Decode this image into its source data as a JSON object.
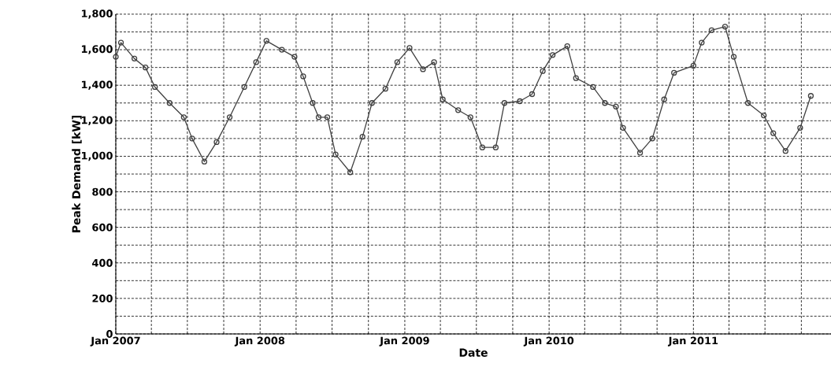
{
  "chart_data": {
    "type": "line",
    "xlabel": "Date",
    "ylabel": "Peak Demand [kW]",
    "x": [
      "2007-01-01",
      "2007-01-14",
      "2007-02-17",
      "2007-03-17",
      "2007-04-10",
      "2007-05-17",
      "2007-06-22",
      "2007-07-13",
      "2007-08-13",
      "2007-09-13",
      "2007-10-16",
      "2007-11-22",
      "2007-12-22",
      "2008-01-17",
      "2008-02-25",
      "2008-03-28",
      "2008-04-19",
      "2008-05-13",
      "2008-05-28",
      "2008-06-19",
      "2008-07-10",
      "2008-08-16",
      "2008-09-16",
      "2008-10-10",
      "2008-11-13",
      "2008-12-13",
      "2009-01-13",
      "2009-02-16",
      "2009-03-16",
      "2009-04-07",
      "2009-05-16",
      "2009-06-16",
      "2009-07-16",
      "2009-08-19",
      "2009-09-10",
      "2009-10-19",
      "2009-11-19",
      "2009-12-16",
      "2010-01-10",
      "2010-02-16",
      "2010-03-10",
      "2010-04-22",
      "2010-05-22",
      "2010-06-19",
      "2010-07-07",
      "2010-08-19",
      "2010-09-19",
      "2010-10-19",
      "2010-11-13",
      "2011-01-01",
      "2011-01-22",
      "2011-02-16",
      "2011-03-22",
      "2011-04-13",
      "2011-05-19",
      "2011-06-28",
      "2011-07-22",
      "2011-08-22",
      "2011-09-28",
      "2011-10-25"
    ],
    "series": [
      {
        "color": "#404040",
        "values": [
          1560,
          1640,
          1550,
          1500,
          1390,
          1300,
          1220,
          1100,
          970,
          1080,
          1220,
          1390,
          1530,
          1650,
          1600,
          1560,
          1450,
          1300,
          1220,
          1220,
          1010,
          910,
          1110,
          1300,
          1380,
          1530,
          1610,
          1490,
          1530,
          1320,
          1260,
          1220,
          1050,
          1050,
          1300,
          1310,
          1350,
          1480,
          1570,
          1620,
          1440,
          1390,
          1300,
          1280,
          1160,
          1020,
          1100,
          1320,
          1470,
          1510,
          1640,
          1710,
          1730,
          1560,
          1300,
          1230,
          1130,
          1030,
          1160,
          1340
        ]
      }
    ],
    "marker": "circle",
    "line_style": "solid",
    "grid": true,
    "legend": false,
    "xlim": [
      "2007-01-01",
      "2011-12-15"
    ],
    "xticks": [
      {
        "value": "2007-01-01",
        "label": "Jan 2007"
      },
      {
        "value": "2007-04-01",
        "label": null
      },
      {
        "value": "2007-07-01",
        "label": null
      },
      {
        "value": "2007-10-01",
        "label": null
      },
      {
        "value": "2008-01-01",
        "label": "Jan 2008"
      },
      {
        "value": "2008-04-01",
        "label": null
      },
      {
        "value": "2008-07-01",
        "label": null
      },
      {
        "value": "2008-10-01",
        "label": null
      },
      {
        "value": "2009-01-01",
        "label": "Jan 2009"
      },
      {
        "value": "2009-04-01",
        "label": null
      },
      {
        "value": "2009-07-01",
        "label": null
      },
      {
        "value": "2009-10-01",
        "label": null
      },
      {
        "value": "2010-01-01",
        "label": "Jan 2010"
      },
      {
        "value": "2010-04-01",
        "label": null
      },
      {
        "value": "2010-07-01",
        "label": null
      },
      {
        "value": "2010-10-01",
        "label": null
      },
      {
        "value": "2011-01-01",
        "label": "Jan 2011"
      },
      {
        "value": "2011-04-01",
        "label": null
      },
      {
        "value": "2011-07-01",
        "label": null
      },
      {
        "value": "2011-10-01",
        "label": null
      }
    ],
    "ylim": [
      0,
      1800
    ],
    "yticks": [
      {
        "value": 0,
        "label": "0"
      },
      {
        "value": 100,
        "label": null
      },
      {
        "value": 200,
        "label": "200"
      },
      {
        "value": 300,
        "label": null
      },
      {
        "value": 400,
        "label": "400"
      },
      {
        "value": 500,
        "label": null
      },
      {
        "value": 600,
        "label": "600"
      },
      {
        "value": 700,
        "label": null
      },
      {
        "value": 800,
        "label": "800"
      },
      {
        "value": 900,
        "label": null
      },
      {
        "value": 1000,
        "label": "1,000"
      },
      {
        "value": 1100,
        "label": null
      },
      {
        "value": 1200,
        "label": "1,200"
      },
      {
        "value": 1300,
        "label": null
      },
      {
        "value": 1400,
        "label": "1,400"
      },
      {
        "value": 1500,
        "label": null
      },
      {
        "value": 1600,
        "label": "1,600"
      },
      {
        "value": 1700,
        "label": null
      },
      {
        "value": 1800,
        "label": "1,800"
      }
    ]
  }
}
